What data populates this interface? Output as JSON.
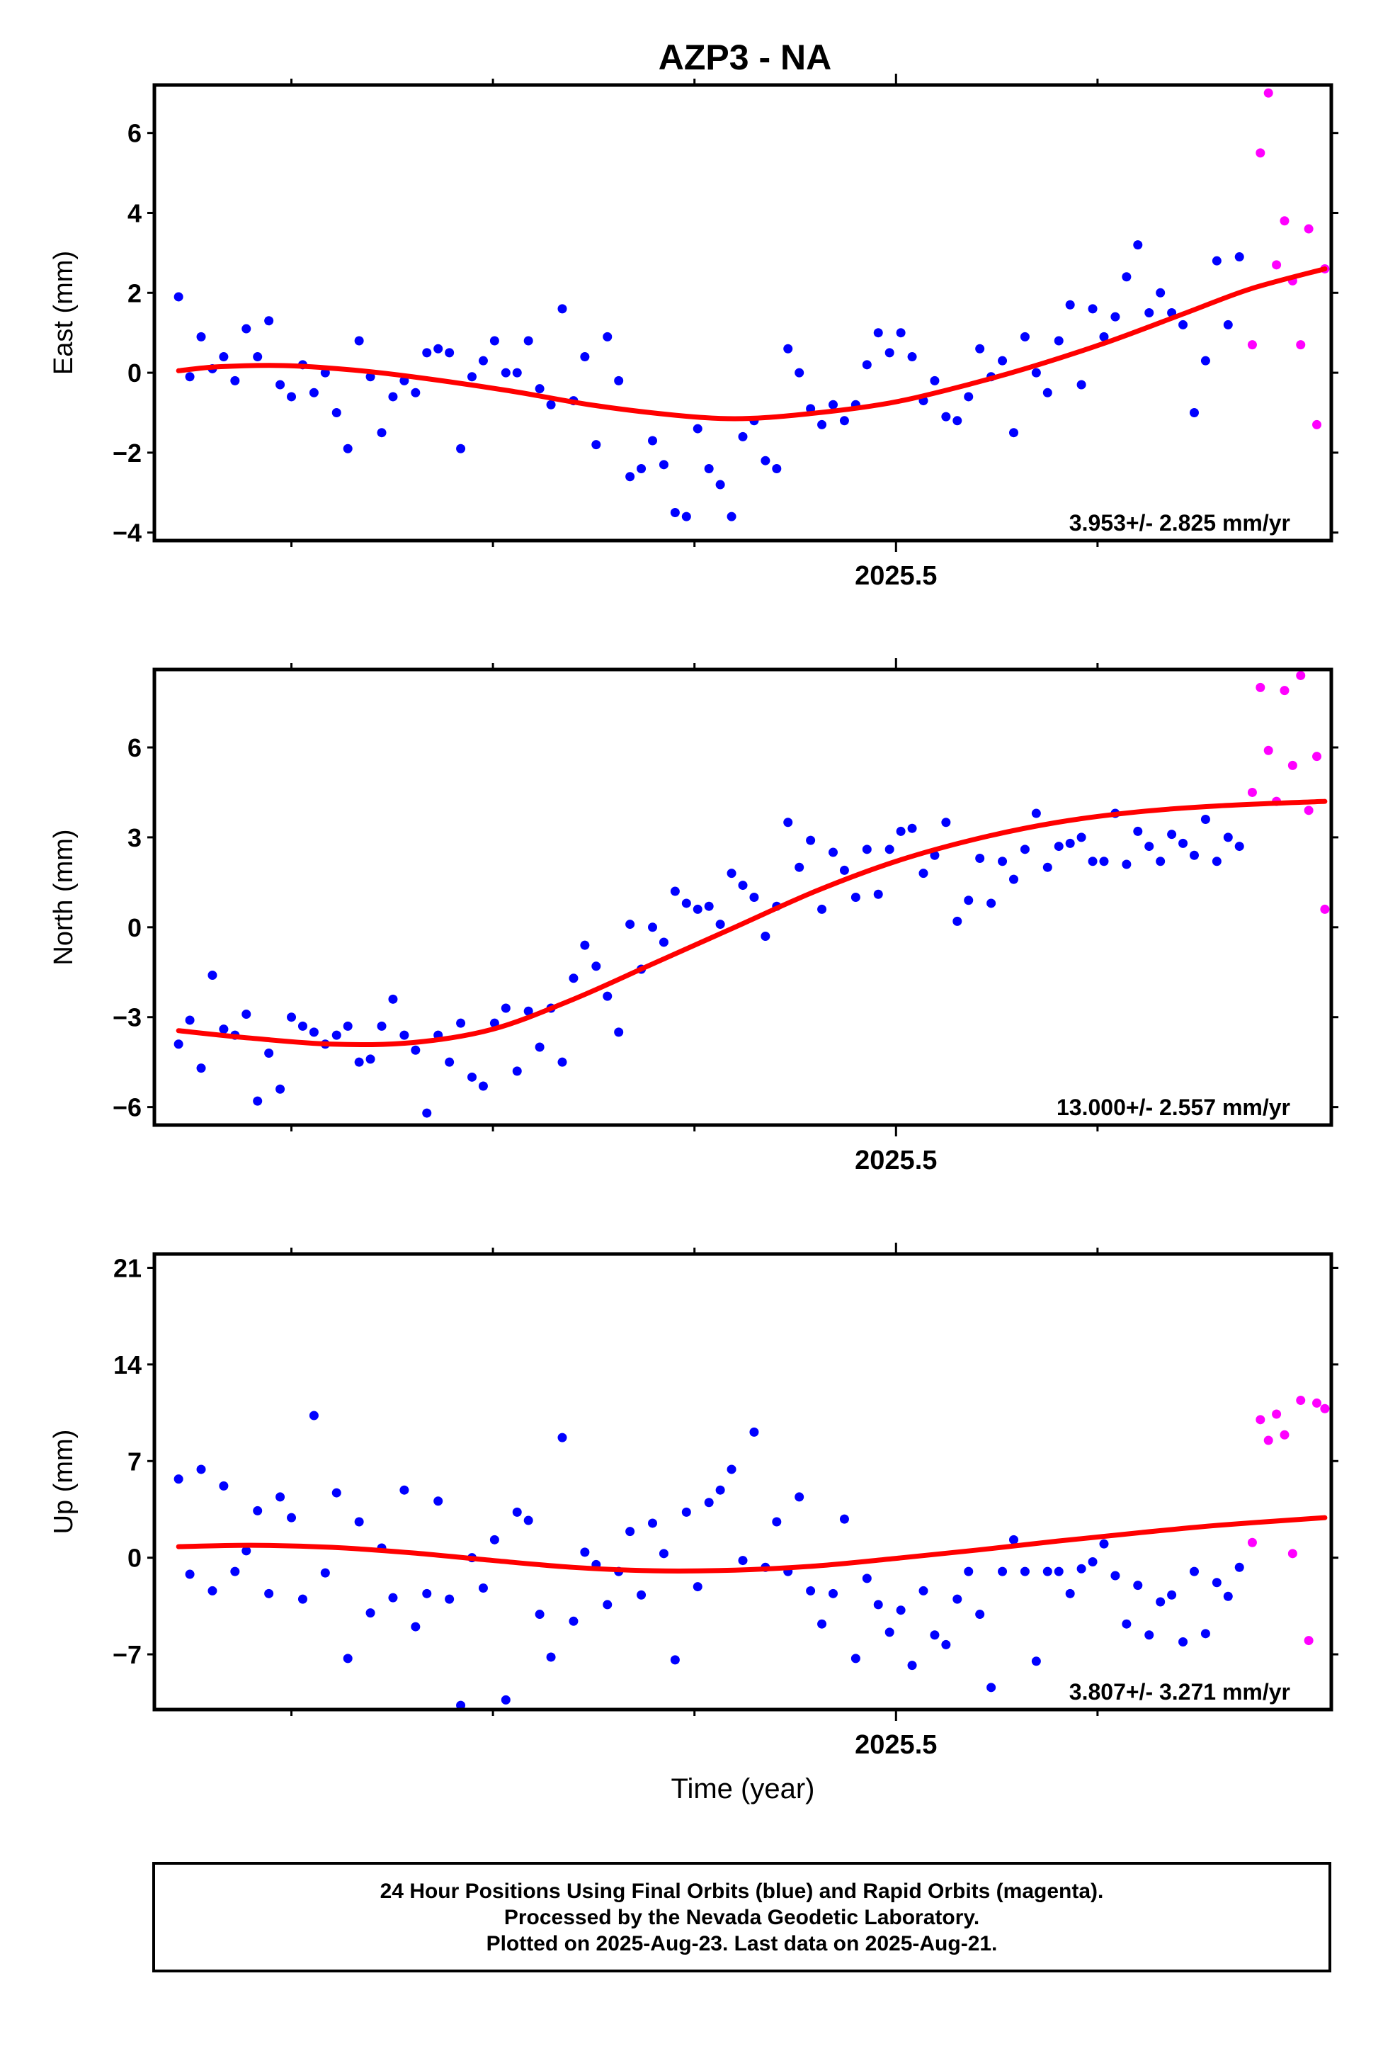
{
  "title": "AZP3 - NA",
  "colors": {
    "final": "#0000ff",
    "rapid": "#ff00ff",
    "fit": "#ff0000",
    "axis": "#000000"
  },
  "footer": {
    "line1": "24 Hour Positions Using Final Orbits (blue) and Rapid Orbits (magenta).",
    "line2": "Processed by the Nevada Geodetic Laboratory.",
    "line3": "Plotted on 2025-Aug-23. Last data on 2025-Aug-21."
  },
  "chart_data": [
    {
      "type": "scatter",
      "ylabel": "East (mm)",
      "xlabel": "",
      "xlim": [
        2025.04,
        2025.77
      ],
      "ylim": [
        -4.2,
        7.2
      ],
      "yticks": [
        6,
        4,
        2,
        0,
        -2,
        -4
      ],
      "xticks": [
        {
          "value": 2025.5,
          "label": "2025.5"
        }
      ],
      "xminor": [
        2025.125,
        2025.25,
        2025.375,
        2025.625
      ],
      "rate": "3.953+/- 2.825 mm/yr",
      "final": {
        "x": [
          2025.055,
          2025.062,
          2025.069,
          2025.076,
          2025.083,
          2025.09,
          2025.097,
          2025.104,
          2025.111,
          2025.118,
          2025.125,
          2025.132,
          2025.139,
          2025.146,
          2025.153,
          2025.16,
          2025.167,
          2025.174,
          2025.181,
          2025.188,
          2025.195,
          2025.202,
          2025.209,
          2025.216,
          2025.223,
          2025.23,
          2025.237,
          2025.244,
          2025.251,
          2025.258,
          2025.265,
          2025.272,
          2025.279,
          2025.286,
          2025.293,
          2025.3,
          2025.307,
          2025.314,
          2025.321,
          2025.328,
          2025.335,
          2025.342,
          2025.349,
          2025.356,
          2025.363,
          2025.37,
          2025.377,
          2025.384,
          2025.391,
          2025.398,
          2025.405,
          2025.412,
          2025.419,
          2025.426,
          2025.433,
          2025.44,
          2025.447,
          2025.454,
          2025.461,
          2025.468,
          2025.475,
          2025.482,
          2025.489,
          2025.496,
          2025.503,
          2025.51,
          2025.517,
          2025.524,
          2025.531,
          2025.538,
          2025.545,
          2025.552,
          2025.559,
          2025.566,
          2025.573,
          2025.58,
          2025.587,
          2025.594,
          2025.601,
          2025.608,
          2025.615,
          2025.622,
          2025.629,
          2025.636,
          2025.643,
          2025.65,
          2025.657,
          2025.664,
          2025.671,
          2025.678,
          2025.685,
          2025.692,
          2025.699,
          2025.706,
          2025.713
        ],
        "y": [
          1.9,
          -0.1,
          0.9,
          0.1,
          0.4,
          -0.2,
          1.1,
          0.4,
          1.3,
          -0.3,
          -0.6,
          0.2,
          -0.5,
          0.0,
          -1.0,
          -1.9,
          0.8,
          -0.1,
          -1.5,
          -0.6,
          -0.2,
          -0.5,
          0.5,
          0.6,
          0.5,
          -1.9,
          -0.1,
          0.3,
          0.8,
          0.0,
          0.0,
          0.8,
          -0.4,
          -0.8,
          1.6,
          -0.7,
          0.4,
          -1.8,
          0.9,
          -0.2,
          -2.6,
          -2.4,
          -1.7,
          -2.3,
          -3.5,
          -3.6,
          -1.4,
          -2.4,
          -2.8,
          -3.6,
          -1.6,
          -1.2,
          -2.2,
          -2.4,
          0.6,
          0.0,
          -0.9,
          -1.3,
          -0.8,
          -1.2,
          -0.8,
          0.2,
          1.0,
          0.5,
          1.0,
          0.4,
          -0.7,
          -0.2,
          -1.1,
          -1.2,
          -0.6,
          0.6,
          -0.1,
          0.3,
          -1.5,
          0.9,
          0.0,
          -0.5,
          0.8,
          1.7,
          -0.3,
          1.6,
          0.9,
          1.4,
          2.4,
          3.2,
          1.5,
          2.0,
          1.5,
          1.2,
          -1.0,
          0.3,
          2.8,
          1.2,
          2.9
        ],
        "color": "#0000ff"
      },
      "rapid": {
        "x": [
          2025.721,
          2025.726,
          2025.731,
          2025.736,
          2025.741,
          2025.746,
          2025.751,
          2025.756,
          2025.761,
          2025.766
        ],
        "y": [
          0.7,
          5.5,
          7.0,
          2.7,
          3.8,
          2.3,
          0.7,
          3.6,
          -1.3,
          2.6
        ],
        "color": "#ff00ff"
      },
      "fit": {
        "x": [
          2025.055,
          2025.08,
          2025.12,
          2025.16,
          2025.2,
          2025.26,
          2025.31,
          2025.36,
          2025.4,
          2025.44,
          2025.49,
          2025.53,
          2025.58,
          2025.63,
          2025.68,
          2025.72,
          2025.766
        ],
        "y": [
          0.05,
          0.15,
          0.18,
          0.08,
          -0.1,
          -0.45,
          -0.8,
          -1.05,
          -1.15,
          -1.05,
          -0.8,
          -0.45,
          0.1,
          0.75,
          1.5,
          2.1,
          2.6
        ]
      }
    },
    {
      "type": "scatter",
      "ylabel": "North (mm)",
      "xlabel": "",
      "xlim": [
        2025.04,
        2025.77
      ],
      "ylim": [
        -6.6,
        8.6
      ],
      "yticks": [
        6,
        3,
        0,
        -3,
        -6
      ],
      "xticks": [
        {
          "value": 2025.5,
          "label": "2025.5"
        }
      ],
      "xminor": [
        2025.125,
        2025.25,
        2025.375,
        2025.625
      ],
      "rate": "13.000+/- 2.557 mm/yr",
      "final": {
        "x": [
          2025.055,
          2025.062,
          2025.069,
          2025.076,
          2025.083,
          2025.09,
          2025.097,
          2025.104,
          2025.111,
          2025.118,
          2025.125,
          2025.132,
          2025.139,
          2025.146,
          2025.153,
          2025.16,
          2025.167,
          2025.174,
          2025.181,
          2025.188,
          2025.195,
          2025.202,
          2025.209,
          2025.216,
          2025.223,
          2025.23,
          2025.237,
          2025.244,
          2025.251,
          2025.258,
          2025.265,
          2025.272,
          2025.279,
          2025.286,
          2025.293,
          2025.3,
          2025.307,
          2025.314,
          2025.321,
          2025.328,
          2025.335,
          2025.342,
          2025.349,
          2025.356,
          2025.363,
          2025.37,
          2025.377,
          2025.384,
          2025.391,
          2025.398,
          2025.405,
          2025.412,
          2025.419,
          2025.426,
          2025.433,
          2025.44,
          2025.447,
          2025.454,
          2025.461,
          2025.468,
          2025.475,
          2025.482,
          2025.489,
          2025.496,
          2025.503,
          2025.51,
          2025.517,
          2025.524,
          2025.531,
          2025.538,
          2025.545,
          2025.552,
          2025.559,
          2025.566,
          2025.573,
          2025.58,
          2025.587,
          2025.594,
          2025.601,
          2025.608,
          2025.615,
          2025.622,
          2025.629,
          2025.636,
          2025.643,
          2025.65,
          2025.657,
          2025.664,
          2025.671,
          2025.678,
          2025.685,
          2025.692,
          2025.699,
          2025.706,
          2025.713
        ],
        "y": [
          -3.9,
          -3.1,
          -4.7,
          -1.6,
          -3.4,
          -3.6,
          -2.9,
          -5.8,
          -4.2,
          -5.4,
          -3.0,
          -3.3,
          -3.5,
          -3.9,
          -3.6,
          -3.3,
          -4.5,
          -4.4,
          -3.3,
          -2.4,
          -3.6,
          -4.1,
          -6.2,
          -3.6,
          -4.5,
          -3.2,
          -5.0,
          -5.3,
          -3.2,
          -2.7,
          -4.8,
          -2.8,
          -4.0,
          -2.7,
          -4.5,
          -1.7,
          -0.6,
          -1.3,
          -2.3,
          -3.5,
          0.1,
          -1.4,
          0.0,
          -0.5,
          1.2,
          0.8,
          0.6,
          0.7,
          0.1,
          1.8,
          1.4,
          1.0,
          -0.3,
          0.7,
          3.5,
          2.0,
          2.9,
          0.6,
          2.5,
          1.9,
          1.0,
          2.6,
          1.1,
          2.6,
          3.2,
          3.3,
          1.8,
          2.4,
          3.5,
          0.2,
          0.9,
          2.3,
          0.8,
          2.2,
          1.6,
          2.6,
          3.8,
          2.0,
          2.7,
          2.8,
          3.0,
          2.2,
          2.2,
          3.8,
          2.1,
          3.2,
          2.7,
          2.2,
          3.1,
          2.8,
          2.4,
          3.6,
          2.2,
          3.0,
          2.7
        ],
        "color": "#0000ff"
      },
      "rapid": {
        "x": [
          2025.721,
          2025.726,
          2025.731,
          2025.736,
          2025.741,
          2025.746,
          2025.751,
          2025.756,
          2025.761,
          2025.766
        ],
        "y": [
          4.5,
          8.0,
          5.9,
          4.2,
          7.9,
          5.4,
          8.4,
          3.9,
          5.7,
          0.6
        ],
        "color": "#ff00ff"
      },
      "fit": {
        "x": [
          2025.055,
          2025.1,
          2025.15,
          2025.2,
          2025.25,
          2025.3,
          2025.35,
          2025.4,
          2025.45,
          2025.5,
          2025.55,
          2025.6,
          2025.65,
          2025.7,
          2025.766
        ],
        "y": [
          -3.45,
          -3.7,
          -3.9,
          -3.85,
          -3.4,
          -2.4,
          -1.2,
          0.0,
          1.2,
          2.2,
          2.95,
          3.5,
          3.85,
          4.05,
          4.2
        ]
      }
    },
    {
      "type": "scatter",
      "ylabel": "Up (mm)",
      "xlabel": "Time (year)",
      "xlim": [
        2025.04,
        2025.77
      ],
      "ylim": [
        -11.0,
        22.0
      ],
      "yticks": [
        21,
        14,
        7,
        0,
        -7
      ],
      "xticks": [
        {
          "value": 2025.5,
          "label": "2025.5"
        }
      ],
      "xminor": [
        2025.125,
        2025.25,
        2025.375,
        2025.625
      ],
      "rate": "3.807+/- 3.271 mm/yr",
      "final": {
        "x": [
          2025.055,
          2025.062,
          2025.069,
          2025.076,
          2025.083,
          2025.09,
          2025.097,
          2025.104,
          2025.111,
          2025.118,
          2025.125,
          2025.132,
          2025.139,
          2025.146,
          2025.153,
          2025.16,
          2025.167,
          2025.174,
          2025.181,
          2025.188,
          2025.195,
          2025.202,
          2025.209,
          2025.216,
          2025.223,
          2025.23,
          2025.237,
          2025.244,
          2025.251,
          2025.258,
          2025.265,
          2025.272,
          2025.279,
          2025.286,
          2025.293,
          2025.3,
          2025.307,
          2025.314,
          2025.321,
          2025.328,
          2025.335,
          2025.342,
          2025.349,
          2025.356,
          2025.363,
          2025.37,
          2025.377,
          2025.384,
          2025.391,
          2025.398,
          2025.405,
          2025.412,
          2025.419,
          2025.426,
          2025.433,
          2025.44,
          2025.447,
          2025.454,
          2025.461,
          2025.468,
          2025.475,
          2025.482,
          2025.489,
          2025.496,
          2025.503,
          2025.51,
          2025.517,
          2025.524,
          2025.531,
          2025.538,
          2025.545,
          2025.552,
          2025.559,
          2025.566,
          2025.573,
          2025.58,
          2025.587,
          2025.594,
          2025.601,
          2025.608,
          2025.615,
          2025.622,
          2025.629,
          2025.636,
          2025.643,
          2025.65,
          2025.657,
          2025.664,
          2025.671,
          2025.678,
          2025.685,
          2025.692,
          2025.699,
          2025.706,
          2025.713
        ],
        "y": [
          5.7,
          -1.2,
          6.4,
          -2.4,
          5.2,
          -1.0,
          0.5,
          3.4,
          -2.6,
          4.4,
          2.9,
          -3.0,
          10.3,
          -1.1,
          4.7,
          -7.3,
          2.6,
          -4.0,
          0.7,
          -2.9,
          4.9,
          -5.0,
          -2.6,
          4.1,
          -3.0,
          -10.7,
          0.0,
          -2.2,
          1.3,
          -10.3,
          3.3,
          2.7,
          -4.1,
          -7.2,
          8.7,
          -4.6,
          0.4,
          -0.5,
          -3.4,
          -1.0,
          1.9,
          -2.7,
          2.5,
          0.3,
          -7.4,
          3.3,
          -2.1,
          4.0,
          4.9,
          6.4,
          -0.2,
          9.1,
          -0.7,
          2.6,
          -1.0,
          4.4,
          -2.4,
          -4.8,
          -2.6,
          2.8,
          -7.3,
          -1.5,
          -3.4,
          -5.4,
          -3.8,
          -7.8,
          -2.4,
          -5.6,
          -6.3,
          -3.0,
          -1.0,
          -4.1,
          -9.4,
          -1.0,
          1.3,
          -1.0,
          -7.5,
          -1.0,
          -1.0,
          -2.6,
          -0.8,
          -0.3,
          1.0,
          -1.3,
          -4.8,
          -2.0,
          -5.6,
          -3.2,
          -2.7,
          -6.1,
          -1.0,
          -5.5,
          -1.8,
          -2.8,
          -0.7
        ],
        "color": "#0000ff"
      },
      "rapid": {
        "x": [
          2025.721,
          2025.726,
          2025.731,
          2025.736,
          2025.741,
          2025.746,
          2025.751,
          2025.756,
          2025.761,
          2025.766
        ],
        "y": [
          1.1,
          10.0,
          8.5,
          10.4,
          8.9,
          0.3,
          11.4,
          -6.0,
          11.2,
          10.8
        ],
        "color": "#ff00ff"
      },
      "fit": {
        "x": [
          2025.055,
          2025.1,
          2025.15,
          2025.2,
          2025.25,
          2025.3,
          2025.35,
          2025.4,
          2025.45,
          2025.5,
          2025.55,
          2025.6,
          2025.65,
          2025.7,
          2025.766
        ],
        "y": [
          0.8,
          0.9,
          0.75,
          0.35,
          -0.2,
          -0.7,
          -0.95,
          -0.9,
          -0.6,
          -0.05,
          0.55,
          1.2,
          1.8,
          2.35,
          2.9
        ]
      }
    }
  ]
}
